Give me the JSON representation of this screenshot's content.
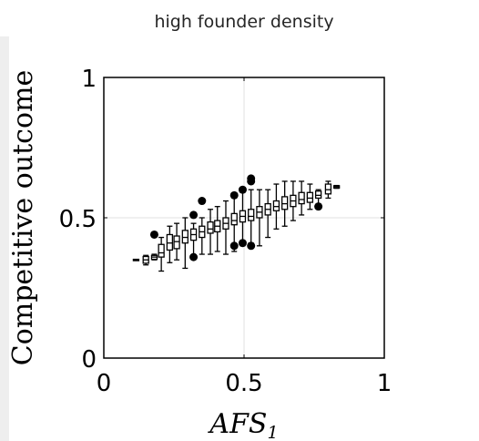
{
  "chart_data": {
    "type": "box",
    "title": "high founder density",
    "xlabel_main": "AFS",
    "xlabel_sub": "1",
    "ylabel": "Competitive outcome",
    "xlim": [
      0,
      1
    ],
    "ylim": [
      0,
      1
    ],
    "xticks": [
      0,
      0.5,
      1
    ],
    "xtick_labels": [
      "0",
      "0.5",
      "1"
    ],
    "yticks": [
      0,
      0.5,
      1
    ],
    "ytick_labels": [
      "0",
      "0.5",
      "1"
    ],
    "grid": true,
    "boxes": [
      {
        "x": 0.115,
        "q1": 0.348,
        "median": 0.35,
        "q3": 0.352,
        "wlo": 0.35,
        "whi": 0.35,
        "outliers": []
      },
      {
        "x": 0.15,
        "q1": 0.338,
        "median": 0.35,
        "q3": 0.362,
        "wlo": 0.332,
        "whi": 0.366,
        "outliers": []
      },
      {
        "x": 0.18,
        "q1": 0.352,
        "median": 0.36,
        "q3": 0.366,
        "wlo": 0.35,
        "whi": 0.37,
        "outliers": [
          0.44
        ]
      },
      {
        "x": 0.205,
        "q1": 0.36,
        "median": 0.375,
        "q3": 0.405,
        "wlo": 0.31,
        "whi": 0.43,
        "outliers": []
      },
      {
        "x": 0.235,
        "q1": 0.385,
        "median": 0.41,
        "q3": 0.44,
        "wlo": 0.34,
        "whi": 0.47,
        "outliers": []
      },
      {
        "x": 0.26,
        "q1": 0.39,
        "median": 0.415,
        "q3": 0.435,
        "wlo": 0.35,
        "whi": 0.48,
        "outliers": []
      },
      {
        "x": 0.29,
        "q1": 0.41,
        "median": 0.43,
        "q3": 0.455,
        "wlo": 0.32,
        "whi": 0.5,
        "outliers": []
      },
      {
        "x": 0.32,
        "q1": 0.42,
        "median": 0.44,
        "q3": 0.46,
        "wlo": 0.36,
        "whi": 0.48,
        "outliers": [
          0.36,
          0.51
        ]
      },
      {
        "x": 0.35,
        "q1": 0.43,
        "median": 0.45,
        "q3": 0.47,
        "wlo": 0.37,
        "whi": 0.5,
        "outliers": [
          0.56
        ]
      },
      {
        "x": 0.38,
        "q1": 0.445,
        "median": 0.46,
        "q3": 0.485,
        "wlo": 0.37,
        "whi": 0.53,
        "outliers": []
      },
      {
        "x": 0.405,
        "q1": 0.45,
        "median": 0.47,
        "q3": 0.49,
        "wlo": 0.38,
        "whi": 0.54,
        "outliers": []
      },
      {
        "x": 0.435,
        "q1": 0.46,
        "median": 0.48,
        "q3": 0.5,
        "wlo": 0.37,
        "whi": 0.56,
        "outliers": []
      },
      {
        "x": 0.465,
        "q1": 0.475,
        "median": 0.49,
        "q3": 0.515,
        "wlo": 0.38,
        "whi": 0.57,
        "outliers": [
          0.4,
          0.58
        ]
      },
      {
        "x": 0.495,
        "q1": 0.485,
        "median": 0.505,
        "q3": 0.525,
        "wlo": 0.4,
        "whi": 0.59,
        "outliers": [
          0.41,
          0.6
        ]
      },
      {
        "x": 0.525,
        "q1": 0.49,
        "median": 0.505,
        "q3": 0.53,
        "wlo": 0.41,
        "whi": 0.6,
        "outliers": [
          0.4,
          0.63,
          0.64
        ]
      },
      {
        "x": 0.555,
        "q1": 0.5,
        "median": 0.52,
        "q3": 0.54,
        "wlo": 0.4,
        "whi": 0.6,
        "outliers": []
      },
      {
        "x": 0.585,
        "q1": 0.51,
        "median": 0.53,
        "q3": 0.55,
        "wlo": 0.43,
        "whi": 0.6,
        "outliers": []
      },
      {
        "x": 0.615,
        "q1": 0.525,
        "median": 0.54,
        "q3": 0.56,
        "wlo": 0.46,
        "whi": 0.62,
        "outliers": []
      },
      {
        "x": 0.645,
        "q1": 0.53,
        "median": 0.55,
        "q3": 0.575,
        "wlo": 0.47,
        "whi": 0.63,
        "outliers": []
      },
      {
        "x": 0.675,
        "q1": 0.54,
        "median": 0.56,
        "q3": 0.58,
        "wlo": 0.49,
        "whi": 0.63,
        "outliers": []
      },
      {
        "x": 0.705,
        "q1": 0.55,
        "median": 0.565,
        "q3": 0.59,
        "wlo": 0.51,
        "whi": 0.63,
        "outliers": []
      },
      {
        "x": 0.735,
        "q1": 0.555,
        "median": 0.57,
        "q3": 0.59,
        "wlo": 0.53,
        "whi": 0.62,
        "outliers": []
      },
      {
        "x": 0.765,
        "q1": 0.57,
        "median": 0.58,
        "q3": 0.595,
        "wlo": 0.55,
        "whi": 0.6,
        "outliers": [
          0.54
        ]
      },
      {
        "x": 0.8,
        "q1": 0.585,
        "median": 0.6,
        "q3": 0.62,
        "wlo": 0.57,
        "whi": 0.63,
        "outliers": []
      },
      {
        "x": 0.83,
        "q1": 0.606,
        "median": 0.61,
        "q3": 0.614,
        "wlo": 0.605,
        "whi": 0.615,
        "outliers": []
      }
    ]
  }
}
